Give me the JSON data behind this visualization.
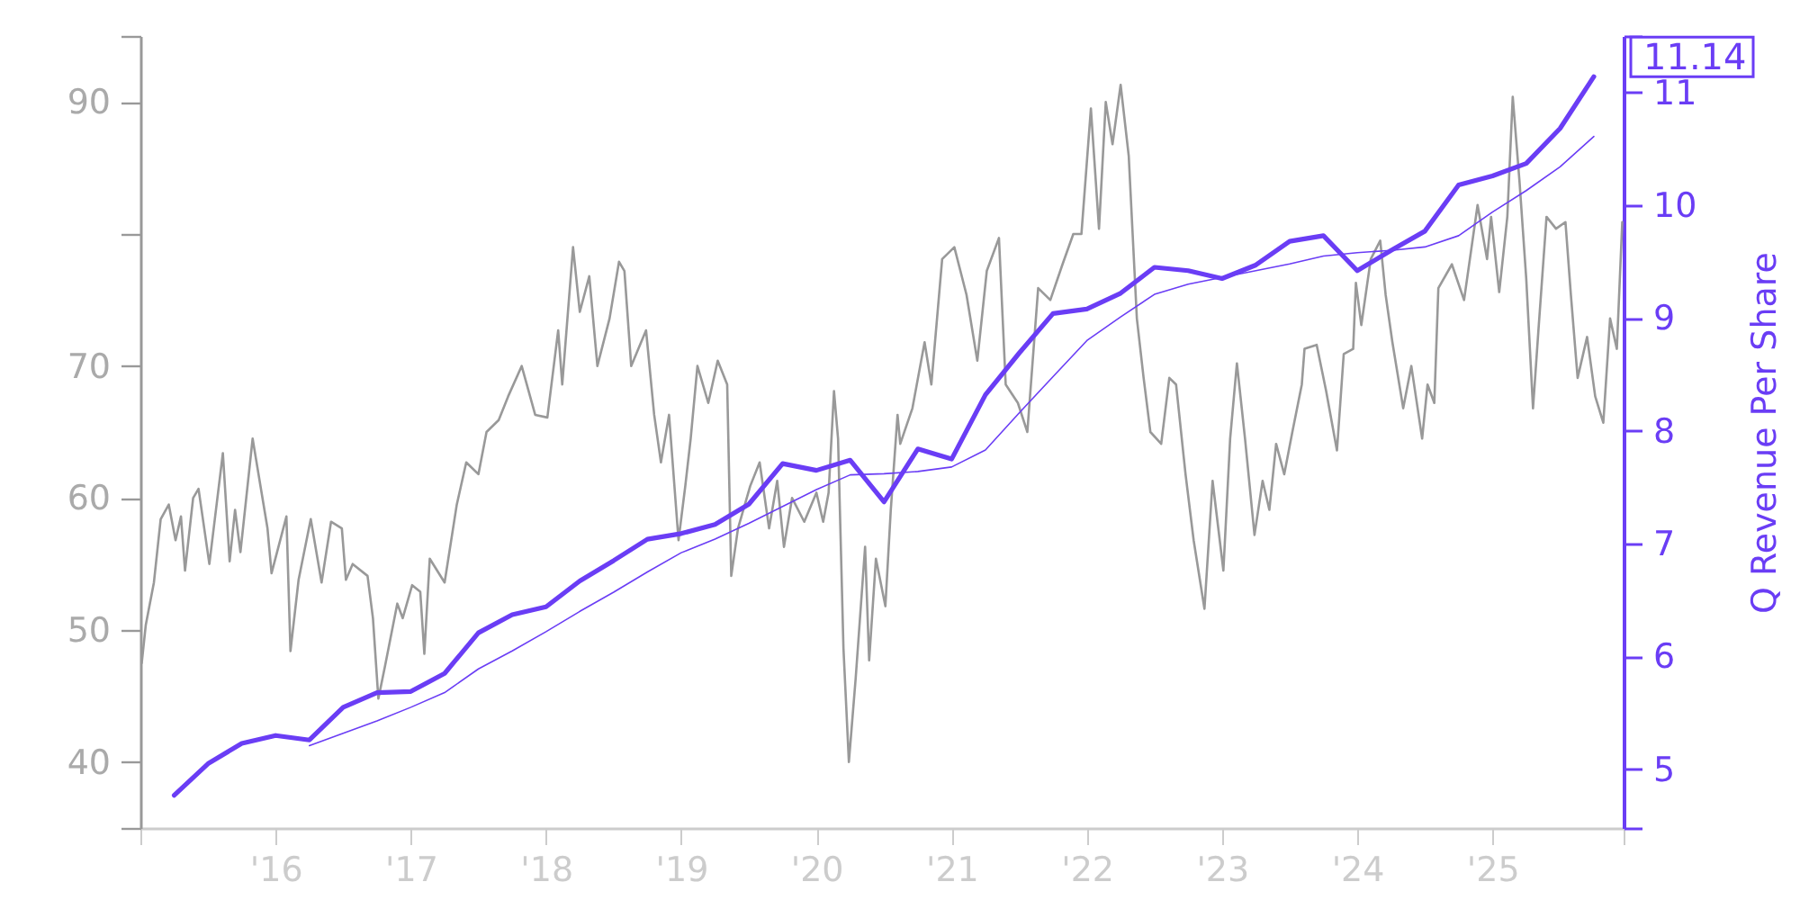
{
  "chart_data": {
    "type": "line",
    "y2label": "Q Revenue Per Share",
    "xlim": [
      2015,
      2025.97
    ],
    "xticks": [
      {
        "value": 2015,
        "label": null
      },
      {
        "value": 2016,
        "label": "'16"
      },
      {
        "value": 2017,
        "label": "'17"
      },
      {
        "value": 2018,
        "label": "'18"
      },
      {
        "value": 2019,
        "label": "'19"
      },
      {
        "value": 2020,
        "label": "'20"
      },
      {
        "value": 2021,
        "label": "'21"
      },
      {
        "value": 2022,
        "label": "'22"
      },
      {
        "value": 2023,
        "label": "'23"
      },
      {
        "value": 2024,
        "label": "'24"
      },
      {
        "value": 2025,
        "label": "'25"
      },
      {
        "value": 2025.97,
        "label": null
      }
    ],
    "ylim": [
      35,
      95
    ],
    "yticks": [
      {
        "value": 35,
        "label": null
      },
      40,
      50,
      60,
      70,
      {
        "value": 80,
        "label": null
      },
      90,
      {
        "value": 95,
        "label": null
      }
    ],
    "y2lim": [
      4.48,
      11.5
    ],
    "y2ticks": [
      {
        "value": 4.48,
        "label": null
      },
      5,
      6,
      7,
      8,
      9,
      10,
      11,
      {
        "value": 11.5,
        "label": null
      }
    ],
    "series": [
      {
        "color": "#999999",
        "x": [
          2015.01,
          2015.04,
          2015.1,
          2015.15,
          2015.21,
          2015.26,
          2015.3,
          2015.33,
          2015.39,
          2015.43,
          2015.51,
          2015.61,
          2015.66,
          2015.7,
          2015.74,
          2015.83,
          2015.94,
          2015.97,
          2016.08,
          2016.11,
          2016.17,
          2016.26,
          2016.34,
          2016.41,
          2016.49,
          2016.52,
          2016.57,
          2016.68,
          2016.72,
          2016.76,
          2016.81,
          2016.9,
          2016.94,
          2017.01,
          2017.07,
          2017.1,
          2017.14,
          2017.25,
          2017.34,
          2017.41,
          2017.5,
          2017.56,
          2017.65,
          2017.72,
          2017.82,
          2017.92,
          2018.01,
          2018.09,
          2018.12,
          2018.2,
          2018.25,
          2018.32,
          2018.38,
          2018.47,
          2018.54,
          2018.58,
          2018.63,
          2018.74,
          2018.8,
          2018.85,
          2018.91,
          2018.98,
          2019.03,
          2019.07,
          2019.12,
          2019.2,
          2019.27,
          2019.34,
          2019.37,
          2019.42,
          2019.51,
          2019.58,
          2019.65,
          2019.71,
          2019.76,
          2019.82,
          2019.91,
          2020.0,
          2020.05,
          2020.09,
          2020.13,
          2020.16,
          2020.2,
          2020.24,
          2020.29,
          2020.36,
          2020.39,
          2020.44,
          2020.51,
          2020.55,
          2020.6,
          2020.62,
          2020.71,
          2020.8,
          2020.85,
          2020.93,
          2021.02,
          2021.11,
          2021.19,
          2021.26,
          2021.35,
          2021.4,
          2021.49,
          2021.56,
          2021.64,
          2021.73,
          2021.82,
          2021.9,
          2021.96,
          2022.03,
          2022.09,
          2022.14,
          2022.19,
          2022.25,
          2022.31,
          2022.37,
          2022.42,
          2022.47,
          2022.55,
          2022.61,
          2022.66,
          2022.73,
          2022.79,
          2022.87,
          2022.93,
          2023.01,
          2023.06,
          2023.11,
          2023.17,
          2023.24,
          2023.3,
          2023.35,
          2023.4,
          2023.46,
          2023.52,
          2023.59,
          2023.61,
          2023.7,
          2023.77,
          2023.85,
          2023.9,
          2023.97,
          2023.99,
          2024.03,
          2024.1,
          2024.17,
          2024.21,
          2024.26,
          2024.34,
          2024.4,
          2024.48,
          2024.52,
          2024.57,
          2024.6,
          2024.7,
          2024.79,
          2024.89,
          2024.96,
          2024.99,
          2025.05,
          2025.11,
          2025.15,
          2025.2,
          2025.25,
          2025.3,
          2025.34,
          2025.4,
          2025.47,
          2025.54,
          2025.58,
          2025.63,
          2025.7,
          2025.76,
          2025.82,
          2025.87,
          2025.92,
          2025.96
        ],
        "values": [
          47.5,
          50.4,
          53.6,
          58.4,
          59.5,
          56.8,
          58.6,
          54.5,
          60.0,
          60.7,
          55.0,
          63.4,
          55.2,
          59.1,
          55.9,
          64.5,
          57.7,
          54.3,
          58.6,
          48.4,
          53.8,
          58.4,
          53.6,
          58.2,
          57.7,
          53.8,
          55.0,
          54.1,
          50.9,
          44.8,
          47.3,
          52.0,
          50.9,
          53.4,
          52.9,
          48.2,
          55.4,
          53.6,
          59.5,
          62.7,
          61.8,
          65.0,
          65.9,
          67.7,
          70.0,
          66.3,
          66.1,
          72.7,
          68.6,
          79.0,
          74.1,
          76.8,
          70.0,
          73.6,
          77.9,
          77.2,
          70.0,
          72.7,
          66.3,
          62.7,
          66.3,
          56.8,
          60.9,
          64.5,
          70.0,
          67.2,
          70.4,
          68.6,
          54.1,
          57.7,
          60.9,
          62.7,
          57.7,
          61.3,
          56.3,
          60.0,
          58.2,
          60.4,
          58.2,
          60.4,
          68.1,
          64.5,
          48.6,
          40.0,
          46.3,
          56.3,
          47.7,
          55.4,
          51.8,
          59.1,
          66.3,
          64.1,
          66.8,
          71.8,
          68.6,
          78.1,
          79.0,
          75.4,
          70.4,
          77.2,
          79.7,
          68.6,
          67.2,
          65.0,
          75.9,
          75.0,
          77.7,
          80.0,
          80.0,
          89.5,
          80.4,
          90.0,
          86.8,
          91.3,
          85.9,
          73.6,
          69.1,
          65.0,
          64.1,
          69.1,
          68.6,
          61.8,
          56.8,
          51.6,
          61.3,
          54.5,
          64.5,
          70.2,
          64.5,
          57.2,
          61.3,
          59.1,
          64.1,
          61.8,
          65.0,
          68.6,
          71.3,
          71.6,
          68.1,
          63.6,
          70.9,
          71.3,
          76.3,
          73.1,
          78.1,
          79.5,
          75.4,
          71.8,
          66.8,
          70.0,
          64.5,
          68.6,
          67.2,
          75.9,
          77.7,
          75.0,
          82.2,
          78.1,
          81.3,
          75.6,
          81.3,
          90.4,
          84.0,
          76.6,
          66.8,
          72.7,
          81.3,
          80.4,
          80.9,
          75.4,
          69.1,
          72.2,
          67.7,
          65.7,
          73.6,
          71.3,
          80.9
        ]
      },
      {
        "color": "#6a3df5",
        "axis": "y2",
        "x": [
          2016.25,
          2016.5,
          2016.75,
          2017.0,
          2017.25,
          2017.5,
          2017.75,
          2018.0,
          2018.25,
          2018.5,
          2018.75,
          2019.0,
          2019.25,
          2019.5,
          2019.75,
          2020.0,
          2020.25,
          2020.5,
          2020.75,
          2021.0,
          2021.25,
          2021.5,
          2021.75,
          2022.0,
          2022.25,
          2022.5,
          2022.75,
          2023.0,
          2023.25,
          2023.5,
          2023.75,
          2024.0,
          2024.25,
          2024.5,
          2024.75,
          2025.0,
          2025.25,
          2025.5,
          2025.75
        ],
        "values": [
          5.21,
          5.32,
          5.43,
          5.55,
          5.68,
          5.89,
          6.05,
          6.22,
          6.4,
          6.57,
          6.75,
          6.92,
          7.04,
          7.18,
          7.33,
          7.48,
          7.61,
          7.62,
          7.64,
          7.68,
          7.83,
          8.16,
          8.48,
          8.8,
          9.01,
          9.21,
          9.3,
          9.36,
          9.42,
          9.48,
          9.55,
          9.58,
          9.6,
          9.63,
          9.73,
          9.94,
          10.13,
          10.34,
          10.61
        ]
      },
      {
        "color": "#6a3df5",
        "axis": "y2",
        "x": [
          2015.25,
          2015.5,
          2015.75,
          2016.0,
          2016.25,
          2016.5,
          2016.75,
          2017.0,
          2017.25,
          2017.5,
          2017.75,
          2018.0,
          2018.25,
          2018.5,
          2018.75,
          2019.0,
          2019.25,
          2019.5,
          2019.75,
          2020.0,
          2020.25,
          2020.5,
          2020.75,
          2021.0,
          2021.25,
          2021.5,
          2021.75,
          2022.0,
          2022.25,
          2022.5,
          2022.75,
          2023.0,
          2023.25,
          2023.5,
          2023.75,
          2024.0,
          2024.25,
          2024.5,
          2024.75,
          2025.0,
          2025.25,
          2025.5,
          2025.75
        ],
        "values": [
          4.77,
          5.05,
          5.23,
          5.3,
          5.26,
          5.55,
          5.68,
          5.69,
          5.85,
          6.21,
          6.37,
          6.44,
          6.67,
          6.85,
          7.04,
          7.09,
          7.17,
          7.35,
          7.71,
          7.65,
          7.74,
          7.37,
          7.84,
          7.75,
          8.32,
          8.69,
          9.04,
          9.08,
          9.22,
          9.45,
          9.42,
          9.35,
          9.47,
          9.68,
          9.73,
          9.42,
          9.6,
          9.77,
          10.18,
          10.26,
          10.37,
          10.68,
          11.14
        ],
        "value_labels": [
          null,
          null,
          null,
          null,
          null,
          null,
          null,
          null,
          null,
          null,
          null,
          null,
          null,
          null,
          null,
          null,
          null,
          null,
          null,
          null,
          null,
          null,
          null,
          null,
          null,
          null,
          null,
          null,
          null,
          null,
          null,
          null,
          null,
          null,
          null,
          null,
          null,
          null,
          null,
          null,
          null,
          null,
          "11.14"
        ]
      }
    ]
  }
}
